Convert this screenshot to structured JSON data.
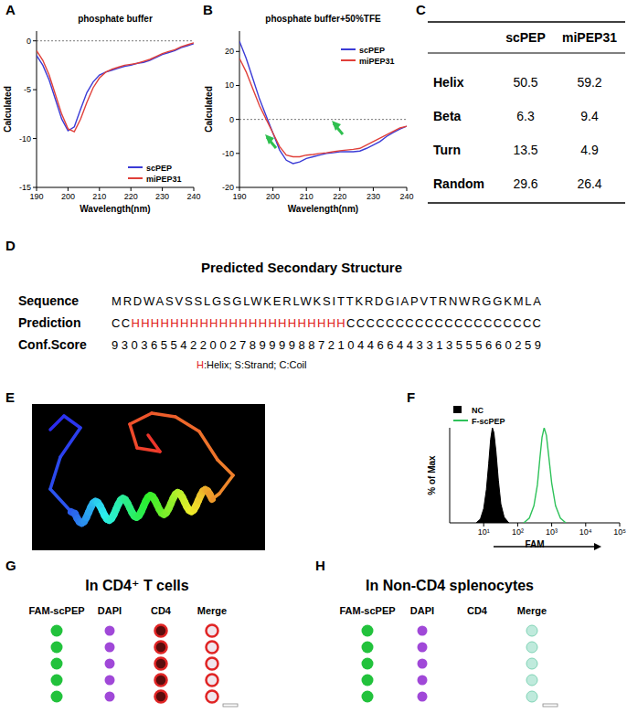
{
  "panel_labels": [
    "A",
    "B",
    "C",
    "D",
    "E",
    "F",
    "G",
    "H"
  ],
  "chart_data": [
    {
      "type": "line",
      "title": "phosphate buffer",
      "x_label": "Wavelength(nm)",
      "y_label": "Calculated",
      "x": [
        190,
        192,
        194,
        196,
        198,
        200,
        202,
        204,
        206,
        208,
        210,
        212,
        214,
        216,
        218,
        220,
        222,
        224,
        226,
        228,
        230,
        232,
        234,
        236,
        238,
        240
      ],
      "xlim": [
        190,
        240
      ],
      "xticks": [
        190,
        200,
        210,
        220,
        230,
        240
      ],
      "ylim": [
        -15,
        1
      ],
      "yticks": [
        -15,
        -10,
        -5,
        0
      ],
      "reference_lines": [
        0
      ],
      "legend": "lower right",
      "series": [
        {
          "name": "scPEP",
          "color": "#3b3bd6",
          "values": [
            -1.5,
            -2.5,
            -4,
            -6,
            -8,
            -9.2,
            -8.8,
            -7,
            -5.3,
            -4.2,
            -3.5,
            -3.2,
            -3,
            -2.8,
            -2.6,
            -2.5,
            -2.3,
            -2.2,
            -2,
            -1.7,
            -1.4,
            -1.2,
            -1,
            -0.7,
            -0.5,
            -0.3
          ]
        },
        {
          "name": "miPEP31",
          "color": "#e0403a",
          "values": [
            -1,
            -2,
            -3.5,
            -5.5,
            -7.5,
            -9,
            -9.3,
            -8,
            -6.3,
            -4.8,
            -3.8,
            -3.2,
            -2.9,
            -2.7,
            -2.5,
            -2.4,
            -2.3,
            -2.1,
            -1.9,
            -1.6,
            -1.3,
            -1.1,
            -0.9,
            -0.6,
            -0.4,
            -0.2
          ]
        }
      ]
    },
    {
      "type": "line",
      "title": "phosphate buffer+50%TFE",
      "x_label": "Wavelength(nm)",
      "y_label": "Calculated",
      "x": [
        190,
        192,
        194,
        196,
        198,
        200,
        202,
        204,
        206,
        208,
        210,
        212,
        214,
        216,
        218,
        220,
        222,
        224,
        226,
        228,
        230,
        232,
        234,
        236,
        238,
        240
      ],
      "xlim": [
        190,
        240
      ],
      "xticks": [
        190,
        200,
        210,
        220,
        230,
        240
      ],
      "ylim": [
        -20,
        26
      ],
      "yticks": [
        -20,
        -10,
        0,
        10,
        20
      ],
      "reference_lines": [
        0
      ],
      "legend": "upper right",
      "series": [
        {
          "name": "scPEP",
          "color": "#3b3bd6",
          "values": [
            23,
            18,
            12,
            6,
            1,
            -4,
            -9,
            -12,
            -13,
            -12.5,
            -11.5,
            -11,
            -10.5,
            -10,
            -9.8,
            -9.5,
            -9.5,
            -9.5,
            -9.3,
            -8.5,
            -7.5,
            -6.5,
            -5,
            -3.8,
            -2.8,
            -2
          ]
        },
        {
          "name": "miPEP31",
          "color": "#e0403a",
          "values": [
            18,
            14,
            9,
            4,
            0,
            -4,
            -8,
            -10.5,
            -11,
            -11,
            -10.5,
            -10.3,
            -10,
            -9.8,
            -9.5,
            -9.2,
            -9,
            -8.8,
            -8.5,
            -7.5,
            -6.5,
            -5.5,
            -4.5,
            -3.5,
            -2.5,
            -2
          ]
        }
      ]
    },
    {
      "type": "area",
      "x_label": "FAM",
      "y_label": "% of Max",
      "log": "x",
      "xlim": [
        1,
        100000
      ],
      "xticks": [
        {
          "value": 10,
          "label": "10¹"
        },
        {
          "value": 100,
          "label": "10²"
        },
        {
          "value": 1000,
          "label": "10³"
        },
        {
          "value": 10000,
          "label": "10⁴"
        },
        {
          "value": 100000,
          "label": "10⁵"
        }
      ],
      "ylim": [
        0,
        100
      ],
      "tick_labels": "x",
      "legend": "upper left",
      "series": [
        {
          "name": "NC",
          "color": "#000000",
          "x": [
            6,
            8,
            10,
            12,
            14,
            16,
            18,
            20,
            23,
            27,
            32,
            40,
            55
          ],
          "values": [
            0,
            4,
            15,
            35,
            62,
            88,
            100,
            95,
            75,
            45,
            20,
            6,
            0
          ]
        },
        {
          "name": "F-scPEP",
          "color": "#2fc25a",
          "type": "line",
          "x": [
            150,
            220,
            300,
            380,
            450,
            520,
            600,
            700,
            820,
            1000,
            1300,
            1800,
            2600
          ],
          "values": [
            0,
            5,
            18,
            40,
            68,
            90,
            100,
            92,
            70,
            42,
            18,
            5,
            0
          ]
        }
      ]
    }
  ],
  "table": {
    "columns": [
      "scPEP",
      "miPEP31"
    ],
    "rows": [
      {
        "label": "Helix",
        "values": [
          50.5,
          59.2
        ]
      },
      {
        "label": "Beta",
        "values": [
          6.3,
          9.4
        ]
      },
      {
        "label": "Turn",
        "values": [
          13.5,
          4.9
        ]
      },
      {
        "label": "Random",
        "values": [
          29.6,
          26.4
        ]
      }
    ]
  },
  "structure": {
    "title": "Predicted Secondary Structure",
    "row_labels": [
      "Sequence",
      "Prediction",
      "Conf.Score"
    ],
    "sequence": "MRDWASVSSLGSGLWKERLWKSITTKRDGIAPVTRNWRGGKMLA",
    "prediction": "CCHHHHHHHHHHHHHHHHHHHHHHCCCCCCCCCCCCCCCCCCCC",
    "confidence": "93036554220027899998872104466443313555660259",
    "key_text": "H:Helix; S:Strand; C:Coil"
  },
  "cell_images": [
    {
      "title": "In CD4⁺ T cells",
      "channels": [
        "FAM-scPEP",
        "DAPI",
        "CD4",
        "Merge"
      ]
    },
    {
      "title": "In Non-CD4 splenocytes",
      "channels": [
        "FAM-scPEP",
        "DAPI",
        "CD4",
        "Merge"
      ]
    }
  ]
}
